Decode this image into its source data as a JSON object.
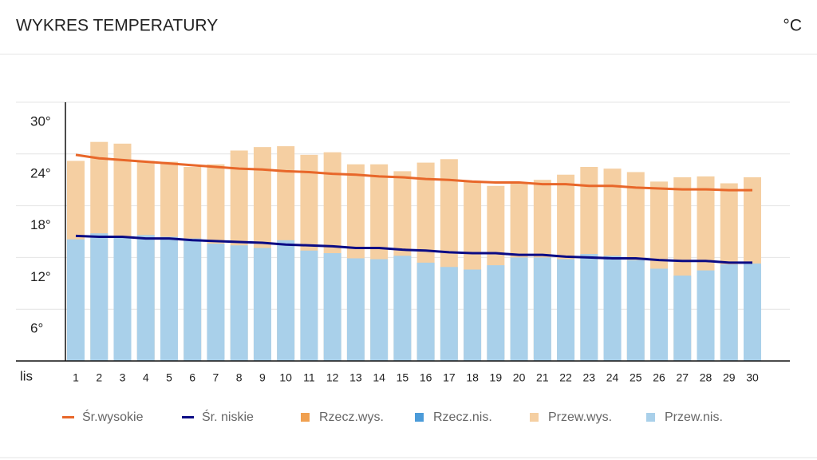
{
  "header": {
    "title": "WYKRES TEMPERATURY",
    "unit": "°C"
  },
  "chart_data": {
    "type": "bar-line",
    "x_label": "lis",
    "categories": [
      "1",
      "2",
      "3",
      "4",
      "5",
      "6",
      "7",
      "8",
      "9",
      "10",
      "11",
      "12",
      "13",
      "14",
      "15",
      "16",
      "17",
      "18",
      "19",
      "20",
      "21",
      "22",
      "23",
      "24",
      "25",
      "26",
      "27",
      "28",
      "29",
      "30"
    ],
    "ylim": [
      0,
      30
    ],
    "yticks": [
      {
        "value": 6,
        "label": "6°"
      },
      {
        "value": 12,
        "label": "12°"
      },
      {
        "value": 18,
        "label": "18°"
      },
      {
        "value": 24,
        "label": "24°"
      },
      {
        "value": 30,
        "label": "30°"
      }
    ],
    "grid": true,
    "series": [
      {
        "name": "Śr.wysokie",
        "color": "#e8672a",
        "kind": "line",
        "values": [
          23.9,
          23.5,
          23.3,
          23.1,
          22.9,
          22.7,
          22.5,
          22.3,
          22.2,
          22.0,
          21.9,
          21.7,
          21.6,
          21.4,
          21.3,
          21.1,
          21.0,
          20.8,
          20.7,
          20.7,
          20.5,
          20.5,
          20.3,
          20.3,
          20.1,
          20.0,
          19.9,
          19.9,
          19.8,
          19.8
        ]
      },
      {
        "name": "Śr. niskie",
        "color": "#0b0b85",
        "kind": "line",
        "values": [
          14.5,
          14.4,
          14.4,
          14.2,
          14.2,
          14.0,
          13.9,
          13.8,
          13.7,
          13.5,
          13.4,
          13.3,
          13.1,
          13.1,
          12.9,
          12.8,
          12.6,
          12.5,
          12.5,
          12.3,
          12.3,
          12.1,
          12.0,
          11.9,
          11.9,
          11.7,
          11.6,
          11.6,
          11.4,
          11.4
        ]
      },
      {
        "name": "Rzecz.wys.",
        "color": "#f0a050",
        "kind": "bar"
      },
      {
        "name": "Rzecz.nis.",
        "color": "#4b9bd9",
        "kind": "bar"
      },
      {
        "name": "Przew.wys.",
        "color": "#f5cfa2",
        "kind": "bar",
        "values": [
          23.2,
          25.4,
          25.2,
          23.2,
          23.1,
          22.5,
          22.8,
          24.4,
          24.8,
          24.9,
          23.9,
          24.2,
          22.8,
          22.8,
          22.0,
          23.0,
          23.4,
          20.9,
          20.3,
          20.6,
          21.0,
          21.6,
          22.5,
          22.3,
          21.9,
          20.8,
          21.3,
          21.4,
          20.6,
          21.3
        ]
      },
      {
        "name": "Przew.nis.",
        "color": "#a9d0ea",
        "kind": "bar",
        "values": [
          14.1,
          14.8,
          14.4,
          14.6,
          14.4,
          14.2,
          13.6,
          13.4,
          13.1,
          14.0,
          12.8,
          12.5,
          11.9,
          11.8,
          12.2,
          11.4,
          10.9,
          10.6,
          11.1,
          12.0,
          12.0,
          11.8,
          12.4,
          12.2,
          11.7,
          10.7,
          9.9,
          10.5,
          11.2,
          11.3
        ]
      }
    ]
  }
}
